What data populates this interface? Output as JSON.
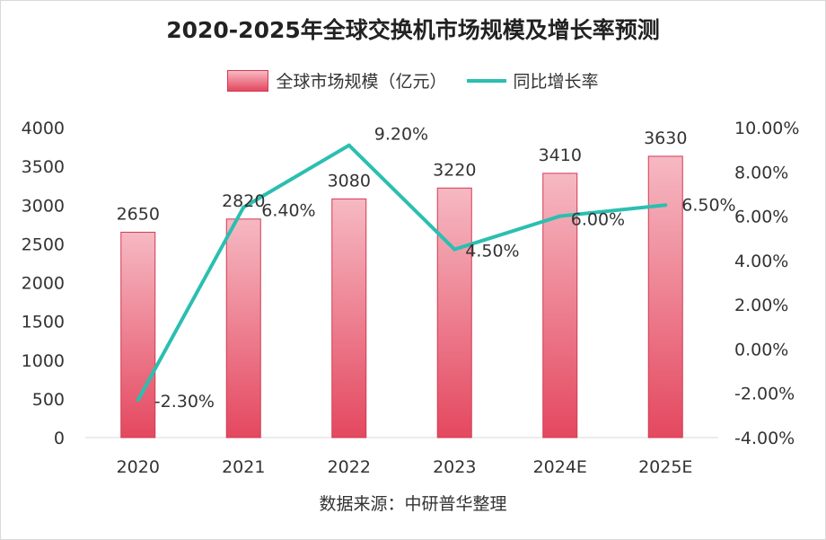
{
  "colors": {
    "bar_top": "#f6b9c3",
    "bar_bottom": "#e4485f",
    "bar_stroke": "#d23a52",
    "line": "#2bbfb0",
    "grid": "#d9d9d9",
    "text": "#333333"
  },
  "footer": {
    "source": "数据来源：中研普华整理"
  },
  "chart_data": {
    "type": "bar",
    "title": "2020-2025年全球交换机市场规模及增长率预测",
    "categories": [
      "2020",
      "2021",
      "2022",
      "2023",
      "2024E",
      "2025E"
    ],
    "series": [
      {
        "name": "全球市场规模（亿元）",
        "type": "bar",
        "axis": "left",
        "values": [
          2650,
          2820,
          3080,
          3220,
          3410,
          3630
        ],
        "labels": [
          "2650",
          "2820",
          "3080",
          "3220",
          "3410",
          "3630"
        ]
      },
      {
        "name": "同比增长率",
        "type": "line",
        "axis": "right",
        "values": [
          -2.3,
          6.4,
          9.2,
          4.5,
          6.0,
          6.5
        ],
        "labels": [
          "-2.30%",
          "6.40%",
          "9.20%",
          "4.50%",
          "6.00%",
          "6.50%"
        ]
      }
    ],
    "y_left": {
      "min": 0,
      "max": 4000,
      "ticks": [
        "0",
        "500",
        "1000",
        "1500",
        "2000",
        "2500",
        "3000",
        "3500",
        "4000"
      ]
    },
    "y_right": {
      "min": -4,
      "max": 10,
      "ticks": [
        "-4.00%",
        "-2.00%",
        "0.00%",
        "2.00%",
        "4.00%",
        "6.00%",
        "8.00%",
        "10.00%"
      ]
    },
    "grid": false,
    "legend": "top-center"
  }
}
